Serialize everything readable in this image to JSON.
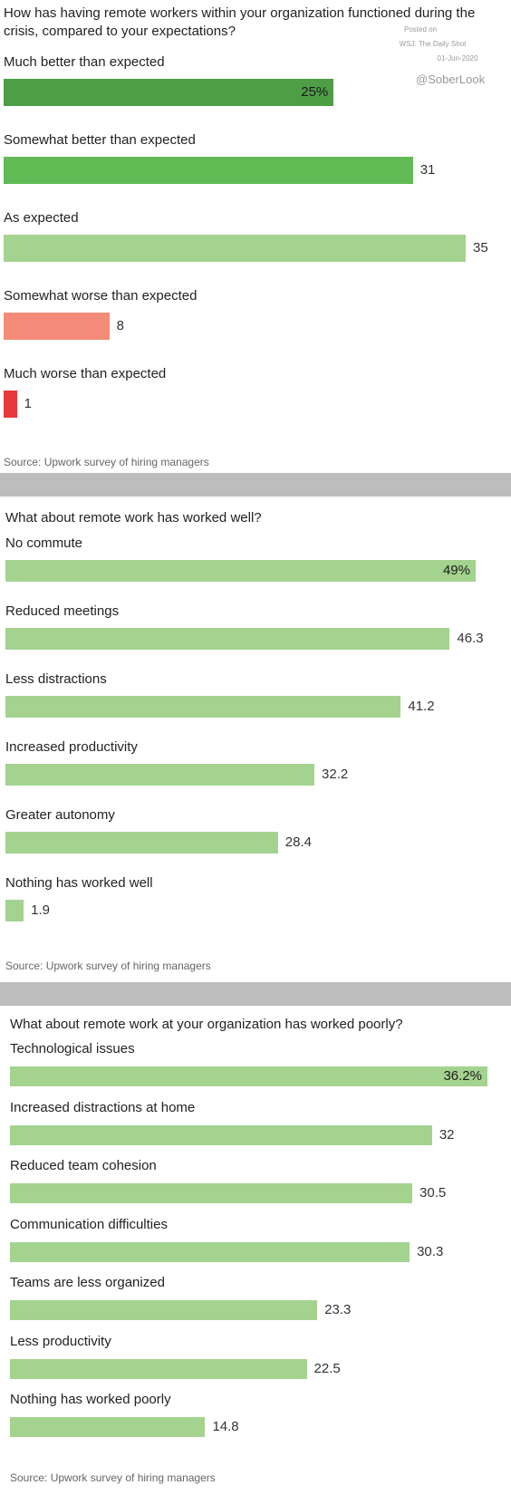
{
  "watermark": {
    "posted_on": "Posted on",
    "publisher": "WSJ: The Daily Shot",
    "date": "01-Jun-2020",
    "credit": "@SoberLook"
  },
  "chart_data": [
    {
      "type": "bar",
      "orientation": "horizontal",
      "title": "How has having remote workers within your organization functioned during the crisis, compared to your expectations?",
      "categories": [
        "Much better than expected",
        "Somewhat better than expected",
        "As expected",
        "Somewhat worse than expected",
        "Much worse than expected"
      ],
      "values": [
        25,
        31,
        35,
        8,
        1
      ],
      "value_labels": [
        "25%",
        "31",
        "35",
        "8",
        "1"
      ],
      "colors": [
        "#4e9e45",
        "#62bb55",
        "#a4d38f",
        "#f38b78",
        "#e8383d"
      ],
      "xlim": [
        0,
        35
      ],
      "source": "Source: Upwork survey of hiring managers"
    },
    {
      "type": "bar",
      "orientation": "horizontal",
      "title": "What about remote work has worked well?",
      "categories": [
        "No commute",
        "Reduced meetings",
        "Less distractions",
        "Increased productivity",
        "Greater autonomy",
        "Nothing has worked well"
      ],
      "values": [
        49,
        46.3,
        41.2,
        32.2,
        28.4,
        1.9
      ],
      "value_labels": [
        "49%",
        "46.3",
        "41.2",
        "32.2",
        "28.4",
        "1.9"
      ],
      "colors": [
        "#a4d38f",
        "#a4d38f",
        "#a4d38f",
        "#a4d38f",
        "#a4d38f",
        "#a4d38f"
      ],
      "xlim": [
        0,
        49
      ],
      "source": "Source: Upwork survey of hiring managers"
    },
    {
      "type": "bar",
      "orientation": "horizontal",
      "title": "What about remote work at your organization has worked poorly?",
      "categories": [
        "Technological issues",
        "Increased distractions at home",
        "Reduced team cohesion",
        "Communication difficulties",
        "Teams are less organized",
        "Less productivity",
        "Nothing has worked poorly"
      ],
      "values": [
        36.2,
        32,
        30.5,
        30.3,
        23.3,
        22.5,
        14.8
      ],
      "value_labels": [
        "36.2%",
        "32",
        "30.5",
        "30.3",
        "23.3",
        "22.5",
        "14.8"
      ],
      "colors": [
        "#a4d38f",
        "#a4d38f",
        "#a4d38f",
        "#a4d38f",
        "#a4d38f",
        "#a4d38f",
        "#a4d38f"
      ],
      "xlim": [
        0,
        36.2
      ],
      "source": "Source: Upwork survey of hiring managers"
    }
  ]
}
